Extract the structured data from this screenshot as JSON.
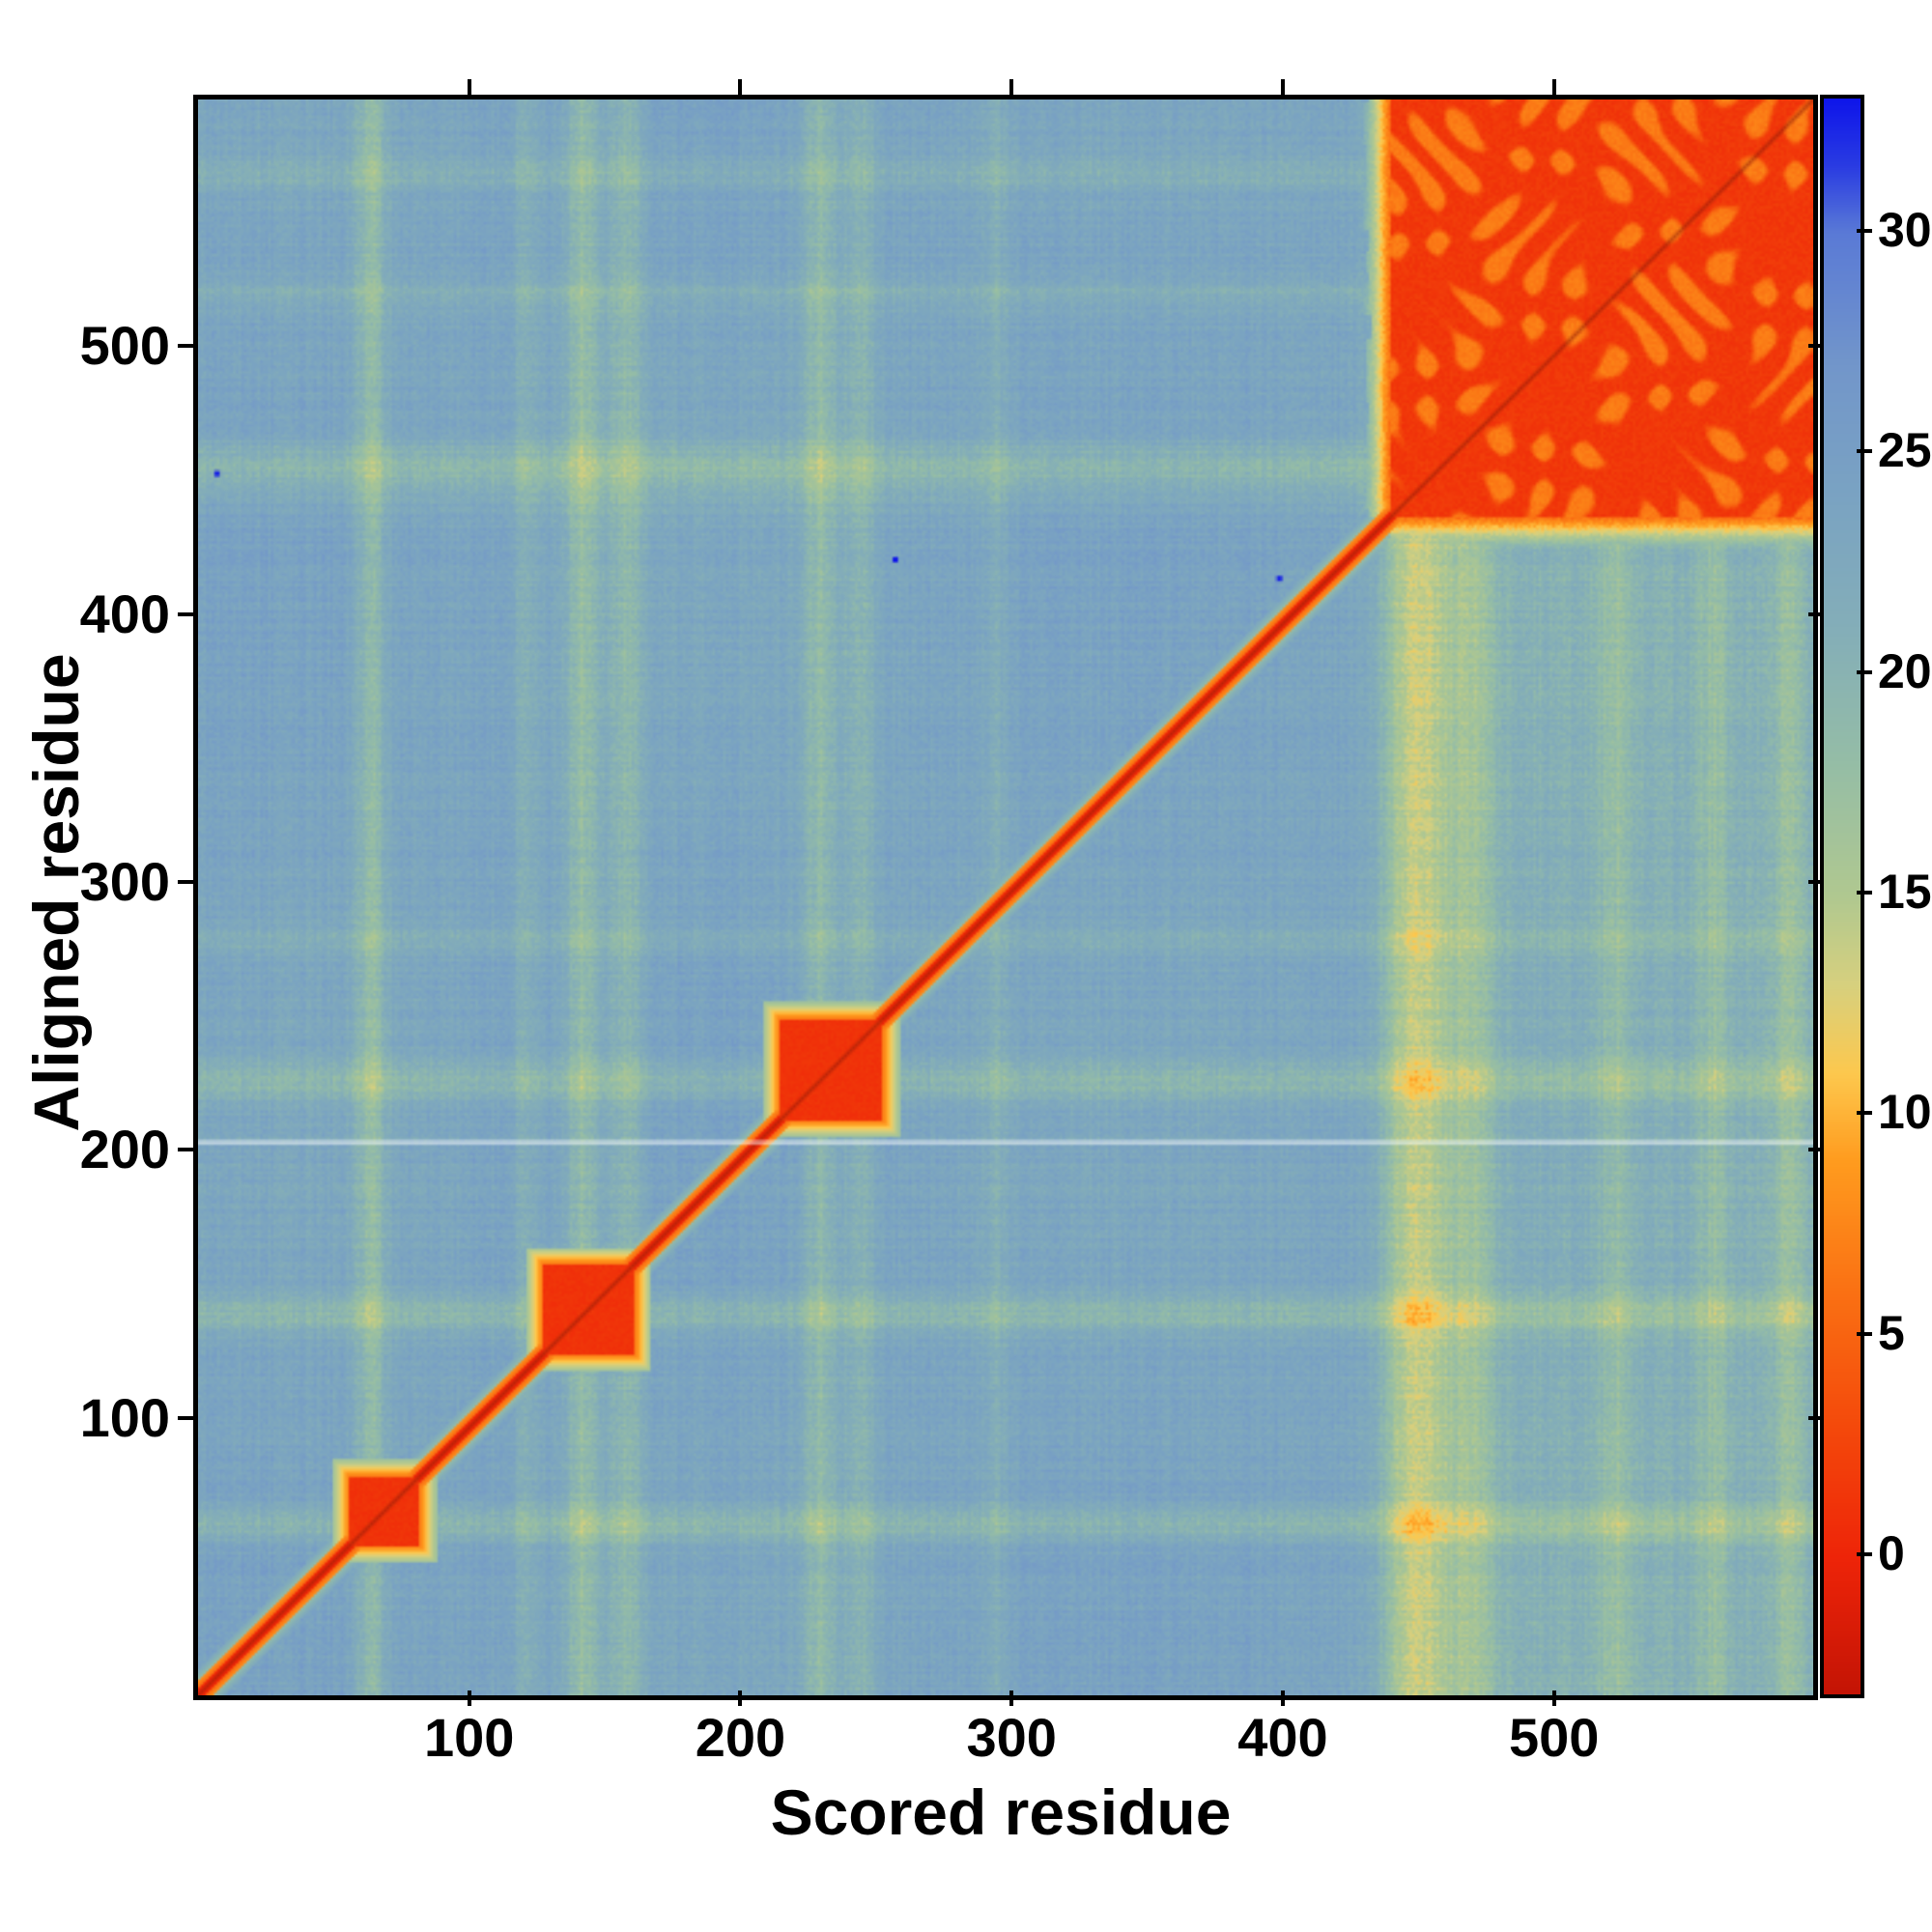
{
  "figure": {
    "description": "Aligned-error heatmap of scored residue vs aligned residue with colorbar",
    "background_color": "#ffffff"
  },
  "chart_data": {
    "type": "heatmap",
    "title": "",
    "xlabel": "Scored residue",
    "ylabel": "Aligned residue",
    "x_range": [
      1,
      592
    ],
    "y_range": [
      1,
      592
    ],
    "x_ticks": [
      100,
      200,
      300,
      400,
      500
    ],
    "y_ticks": [
      100,
      200,
      300,
      400,
      500
    ],
    "grid": false,
    "colorbar": {
      "position": "right",
      "ticks": [
        0,
        5,
        10,
        15,
        20,
        25,
        30
      ],
      "vmin": -3,
      "vmax": 33,
      "colormap_stops": [
        [
          -3,
          "#c41405"
        ],
        [
          0,
          "#ee2408"
        ],
        [
          3,
          "#f4490b"
        ],
        [
          6,
          "#fa7013"
        ],
        [
          9,
          "#ff9b1e"
        ],
        [
          11,
          "#fdc84e"
        ],
        [
          13,
          "#d7d07e"
        ],
        [
          15,
          "#b0c890"
        ],
        [
          18,
          "#95bda6"
        ],
        [
          21,
          "#84aeb8"
        ],
        [
          24,
          "#7aa3c2"
        ],
        [
          27,
          "#7296ca"
        ],
        [
          30,
          "#5a7ad6"
        ],
        [
          31.5,
          "#2a3ce2"
        ],
        [
          33,
          "#0f16ea"
        ]
      ]
    },
    "background_value": 23.5,
    "noise_amplitude": 2.4,
    "diagonal": {
      "core_value": 0.3,
      "core_half_width": 2,
      "halo_half_width": 5,
      "outer_halo_value": 12,
      "outer_halo_half_width": 9
    },
    "diagonal_blobs": [
      {
        "center": 68,
        "half_size": 13
      },
      {
        "center": 143,
        "half_size": 17
      },
      {
        "center": 232,
        "half_size": 19
      }
    ],
    "blob_value": 0.8,
    "blob_halo_value": 7,
    "corner_block": {
      "start": 437,
      "end": 592,
      "base_value": 1.6,
      "patch_value": 6.8
    },
    "column_streaks": [
      {
        "c": 63,
        "w": 4,
        "d": 5
      },
      {
        "c": 120,
        "w": 3,
        "d": 2.5
      },
      {
        "c": 141,
        "w": 5,
        "d": 5
      },
      {
        "c": 157,
        "w": 4,
        "d": 4
      },
      {
        "c": 228,
        "w": 5,
        "d": 4.5
      },
      {
        "c": 243,
        "w": 4,
        "d": 3
      },
      {
        "c": 292,
        "w": 3,
        "d": 2
      },
      {
        "c": 448,
        "w": 10,
        "d": 7
      },
      {
        "c": 468,
        "w": 5,
        "d": 3.5
      },
      {
        "c": 520,
        "w": 5,
        "d": 3
      },
      {
        "c": 556,
        "w": 4,
        "d": 3
      },
      {
        "c": 583,
        "w": 4,
        "d": 3.5
      }
    ],
    "row_streaks": [
      {
        "c": 63,
        "w": 4,
        "d": 4
      },
      {
        "c": 141,
        "w": 5,
        "d": 4
      },
      {
        "c": 228,
        "w": 5,
        "d": 4
      },
      {
        "c": 280,
        "w": 3,
        "d": 2
      },
      {
        "c": 455,
        "w": 8,
        "d": 4
      },
      {
        "c": 520,
        "w": 4,
        "d": 2.5
      },
      {
        "c": 565,
        "w": 4,
        "d": 2.5
      }
    ],
    "right_region_lightening": 2.5,
    "white_line_y": 205,
    "blue_specks": [
      [
        6,
        454
      ],
      [
        255,
        422
      ],
      [
        396,
        415
      ]
    ]
  }
}
